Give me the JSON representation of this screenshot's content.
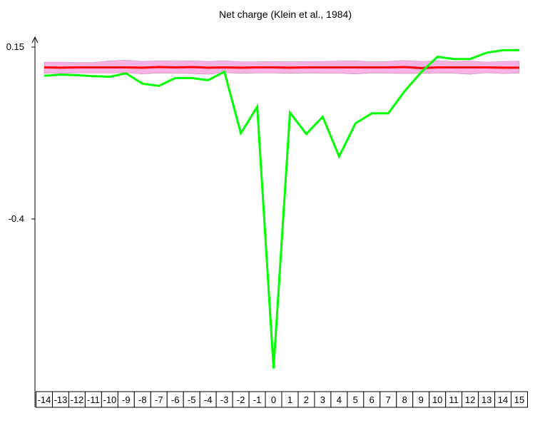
{
  "chart_data": {
    "type": "line",
    "title": "Net charge (Klein et al., 1984)",
    "xlabel": "",
    "ylabel": "",
    "categories": [
      "-14",
      "-13",
      "-12",
      "-11",
      "-10",
      "-9",
      "-8",
      "-7",
      "-6",
      "-5",
      "-4",
      "-3",
      "-2",
      "-1",
      "0",
      "1",
      "2",
      "3",
      "4",
      "5",
      "6",
      "7",
      "8",
      "9",
      "10",
      "11",
      "12",
      "13",
      "14",
      "15"
    ],
    "y_ticks": [
      {
        "value": 0.15,
        "label": "0.15"
      },
      {
        "value": -0.4,
        "label": "-0.4"
      }
    ],
    "ylim": [
      -0.97,
      0.18
    ],
    "band": {
      "upper": [
        0.102,
        0.102,
        0.101,
        0.101,
        0.106,
        0.108,
        0.104,
        0.106,
        0.105,
        0.106,
        0.104,
        0.106,
        0.103,
        0.103,
        0.104,
        0.103,
        0.104,
        0.104,
        0.105,
        0.106,
        0.103,
        0.104,
        0.107,
        0.104,
        0.106,
        0.104,
        0.105,
        0.102,
        0.104,
        0.105
      ],
      "lower": [
        0.066,
        0.066,
        0.067,
        0.067,
        0.067,
        0.068,
        0.064,
        0.067,
        0.066,
        0.065,
        0.063,
        0.068,
        0.066,
        0.067,
        0.067,
        0.066,
        0.067,
        0.066,
        0.066,
        0.064,
        0.067,
        0.066,
        0.065,
        0.066,
        0.067,
        0.066,
        0.063,
        0.068,
        0.065,
        0.067
      ],
      "color": "#f9b2e3"
    },
    "series": [
      {
        "values": [
          0.085,
          0.084,
          0.085,
          0.085,
          0.085,
          0.085,
          0.084,
          0.086,
          0.085,
          0.086,
          0.084,
          0.085,
          0.084,
          0.085,
          0.085,
          0.084,
          0.085,
          0.085,
          0.085,
          0.085,
          0.085,
          0.085,
          0.086,
          0.083,
          0.085,
          0.085,
          0.085,
          0.085,
          0.084,
          0.084
        ],
        "color": "#ff0000"
      },
      {
        "values": [
          0.058,
          0.062,
          0.06,
          0.057,
          0.055,
          0.066,
          0.033,
          0.026,
          0.051,
          0.051,
          0.044,
          0.071,
          -0.126,
          -0.041,
          -0.878,
          -0.06,
          -0.128,
          -0.073,
          -0.2,
          -0.094,
          -0.062,
          -0.062,
          0.009,
          0.069,
          0.119,
          0.112,
          0.112,
          0.132,
          0.14,
          0.14
        ],
        "color": "#00ff00"
      }
    ],
    "grid": false,
    "legend": "none"
  }
}
